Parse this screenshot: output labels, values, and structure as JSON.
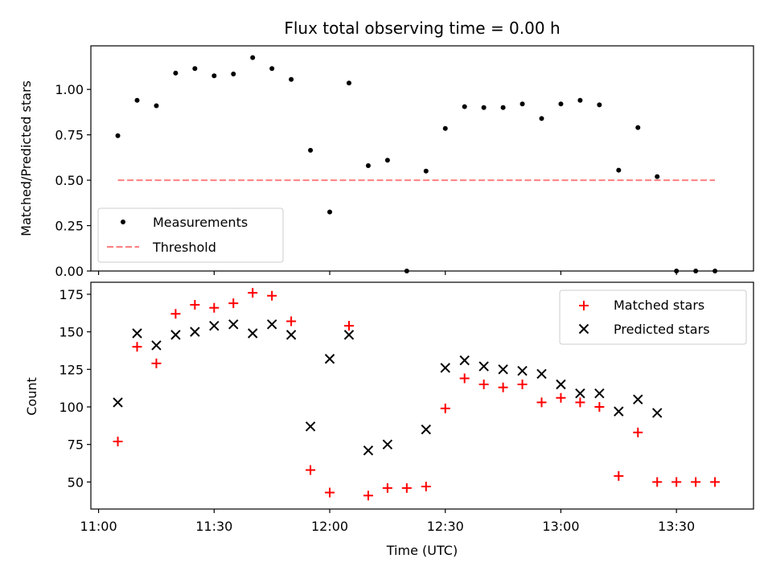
{
  "chart_data": [
    {
      "type": "scatter",
      "title": "Flux total observing time = 0.00 h",
      "xlabel": "",
      "ylabel": "Matched/Predicted stars",
      "ylim": [
        0,
        1.24
      ],
      "yticks": [
        "0.00",
        "0.25",
        "0.50",
        "0.75",
        "1.00"
      ],
      "ytick_values": [
        0,
        0.25,
        0.5,
        0.75,
        1.0
      ],
      "legend_position": "lower-left",
      "series": [
        {
          "name": "Measurements",
          "marker": "dot",
          "color": "#000000",
          "x": [
            "11:05",
            "11:10",
            "11:15",
            "11:20",
            "11:25",
            "11:30",
            "11:35",
            "11:40",
            "11:45",
            "11:50",
            "11:55",
            "12:00",
            "12:05",
            "12:10",
            "12:15",
            "12:20",
            "12:25",
            "12:30",
            "12:35",
            "12:40",
            "12:45",
            "12:50",
            "12:55",
            "13:00",
            "13:05",
            "13:10",
            "13:15",
            "13:20",
            "13:25",
            "13:30",
            "13:35",
            "13:40"
          ],
          "y": [
            0.745,
            0.94,
            0.91,
            1.09,
            1.115,
            1.075,
            1.085,
            1.175,
            1.115,
            1.055,
            0.665,
            0.325,
            1.035,
            0.58,
            0.61,
            0.0,
            0.55,
            0.785,
            0.905,
            0.9,
            0.9,
            0.92,
            0.84,
            0.92,
            0.94,
            0.915,
            0.555,
            0.79,
            0.52,
            0.0,
            0.0,
            0.0
          ]
        },
        {
          "name": "Threshold",
          "marker": "dashed-line",
          "color": "#ff7f7f",
          "x": [
            "11:05",
            "13:40"
          ],
          "y": [
            0.5,
            0.5
          ]
        }
      ]
    },
    {
      "type": "scatter",
      "title": "",
      "xlabel": "Time (UTC)",
      "ylabel": "Count",
      "ylim": [
        32,
        183
      ],
      "yticks": [
        "50",
        "75",
        "100",
        "125",
        "150",
        "175"
      ],
      "ytick_values": [
        50,
        75,
        100,
        125,
        150,
        175
      ],
      "xticks": [
        "11:00",
        "11:30",
        "12:00",
        "12:30",
        "13:00",
        "13:30"
      ],
      "xtick_values": [
        "11:00",
        "11:30",
        "12:00",
        "12:30",
        "13:00",
        "13:30"
      ],
      "xlim": [
        "10:58",
        "13:50"
      ],
      "legend_position": "upper-right",
      "series": [
        {
          "name": "Matched stars",
          "marker": "plus",
          "color": "#ff0000",
          "x": [
            "11:05",
            "11:10",
            "11:15",
            "11:20",
            "11:25",
            "11:30",
            "11:35",
            "11:40",
            "11:45",
            "11:50",
            "11:55",
            "12:00",
            "12:05",
            "12:10",
            "12:15",
            "12:20",
            "12:25",
            "12:30",
            "12:35",
            "12:40",
            "12:45",
            "12:50",
            "12:55",
            "13:00",
            "13:05",
            "13:10",
            "13:15",
            "13:20",
            "13:25",
            "13:30",
            "13:35",
            "13:40"
          ],
          "y": [
            77,
            140,
            129,
            162,
            168,
            166,
            169,
            176,
            174,
            157,
            58,
            43,
            154,
            41,
            46,
            46,
            47,
            99,
            119,
            115,
            113,
            115,
            103,
            106,
            103,
            100,
            54,
            83,
            50,
            50,
            50,
            50
          ]
        },
        {
          "name": "Predicted stars",
          "marker": "x",
          "color": "#000000",
          "x": [
            "11:05",
            "11:10",
            "11:15",
            "11:20",
            "11:25",
            "11:30",
            "11:35",
            "11:40",
            "11:45",
            "11:50",
            "11:55",
            "12:00",
            "12:05",
            "12:10",
            "12:15",
            "12:20",
            "12:25",
            "12:30",
            "12:35",
            "12:40",
            "12:45",
            "12:50",
            "12:55",
            "13:00",
            "13:05",
            "13:10",
            "13:15",
            "13:20",
            "13:25"
          ],
          "y": [
            103,
            149,
            141,
            148,
            150,
            154,
            155,
            149,
            155,
            148,
            87,
            132,
            148,
            71,
            75,
            null,
            85,
            126,
            131,
            127,
            125,
            124,
            122,
            115,
            109,
            109,
            97,
            105,
            96
          ]
        }
      ]
    }
  ]
}
